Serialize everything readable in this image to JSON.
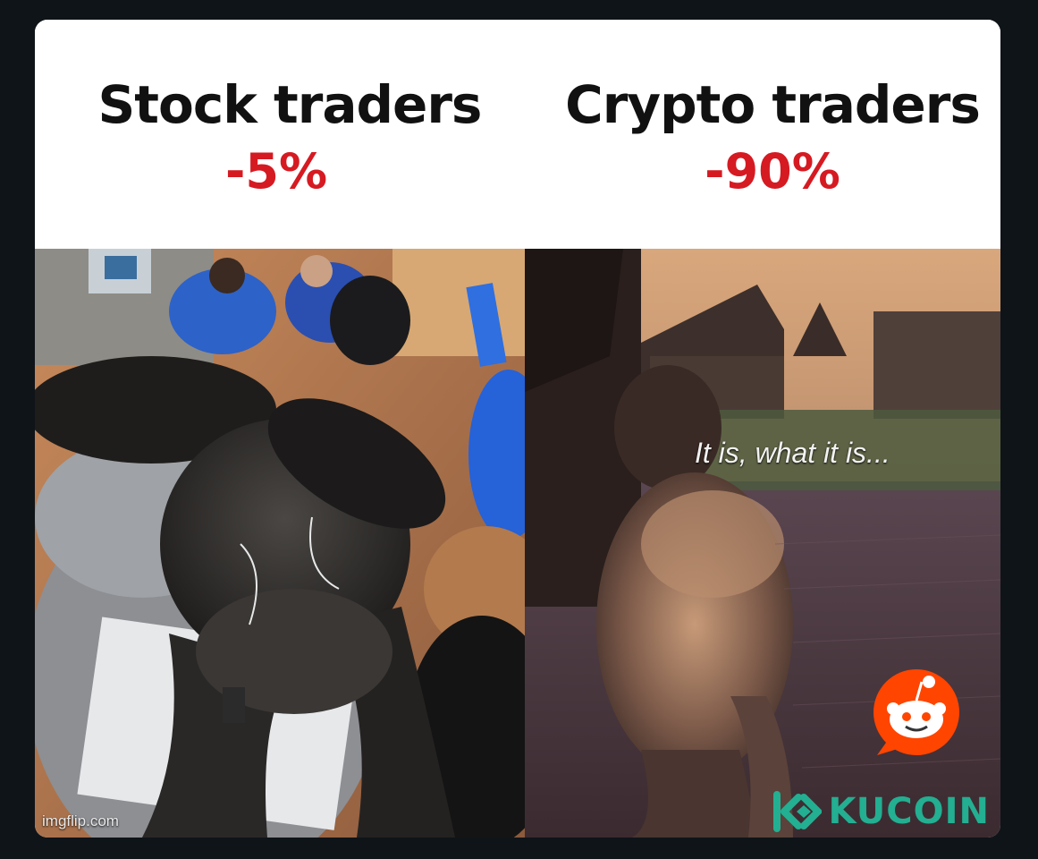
{
  "left": {
    "title": "Stock traders",
    "percent": "-5%"
  },
  "right": {
    "title": "Crypto traders",
    "percent": "-90%"
  },
  "caption": "It is, what it is...",
  "watermark": "imgflip.com",
  "brand": "KUCOIN",
  "colors": {
    "percent": "#d61a22",
    "brand": "#23af91",
    "reddit": "#ff4500"
  },
  "icons": [
    "reddit-icon",
    "kucoin-logo-icon"
  ]
}
